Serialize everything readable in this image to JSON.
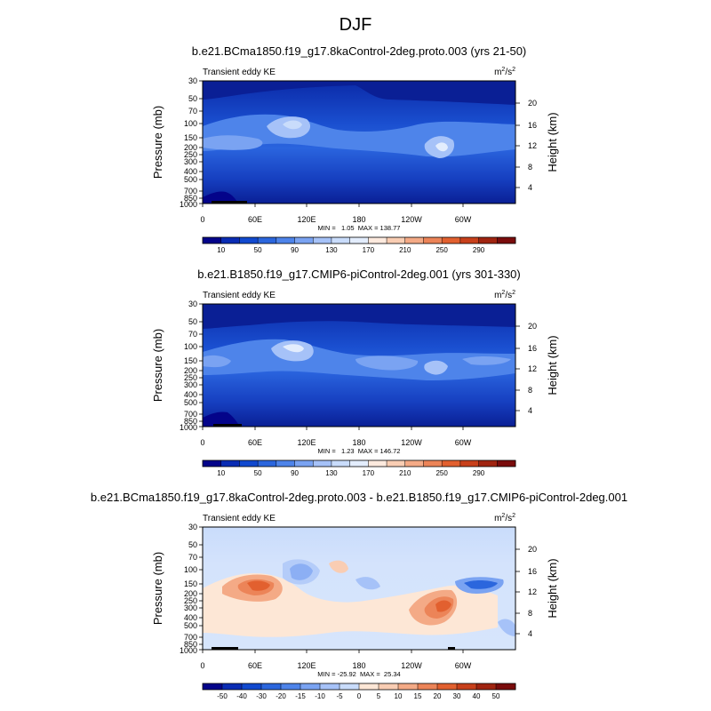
{
  "figure_title": "DJF",
  "chart_data": [
    {
      "type": "heatmap",
      "title": "b.e21.BCma1850.f19_g17.8kaControl-2deg.proto.003 (yrs 21-50)",
      "left_label": "Transient eddy KE",
      "units": "m²/s²",
      "units_base": "m",
      "units_sup1": "2",
      "units_mid": "/s",
      "units_sup2": "2",
      "ylabel": "Pressure (mb)",
      "ylabel_right": "Height (km)",
      "x_ticks": [
        "0",
        "60E",
        "120E",
        "180",
        "120W",
        "60W"
      ],
      "x_range": [
        0,
        360
      ],
      "y_ticks": [
        "30",
        "50",
        "70",
        "100",
        "150",
        "200",
        "250",
        "300",
        "400",
        "500",
        "700",
        "850",
        "1000"
      ],
      "y_range_mb": [
        1000,
        30
      ],
      "height_ticks": [
        "20",
        "16",
        "12",
        "8",
        "4"
      ],
      "stats": "MIN =   1.05  MAX = 138.77",
      "min": 1.05,
      "max": 138.77,
      "colorbar_labels": [
        "10",
        "50",
        "90",
        "130",
        "170",
        "210",
        "250",
        "290"
      ],
      "colorbar_colors": [
        "#04048a",
        "#0a2cb4",
        "#1149cf",
        "#2b66dd",
        "#4e84ea",
        "#7aa3f2",
        "#a6c2f8",
        "#c9dcfb",
        "#e3edfd",
        "#fdeade",
        "#f9cdb3",
        "#f4aa86",
        "#ec8458",
        "#e2602f",
        "#c8401b",
        "#a02410",
        "#7a0c0c"
      ]
    },
    {
      "type": "heatmap",
      "title": "b.e21.B1850.f19_g17.CMIP6-piControl-2deg.001 (yrs 301-330)",
      "left_label": "Transient eddy KE",
      "units": "m²/s²",
      "units_base": "m",
      "units_sup1": "2",
      "units_mid": "/s",
      "units_sup2": "2",
      "ylabel": "Pressure (mb)",
      "ylabel_right": "Height (km)",
      "x_ticks": [
        "0",
        "60E",
        "120E",
        "180",
        "120W",
        "60W"
      ],
      "x_range": [
        0,
        360
      ],
      "y_ticks": [
        "30",
        "50",
        "70",
        "100",
        "150",
        "200",
        "250",
        "300",
        "400",
        "500",
        "700",
        "850",
        "1000"
      ],
      "y_range_mb": [
        1000,
        30
      ],
      "height_ticks": [
        "20",
        "16",
        "12",
        "8",
        "4"
      ],
      "stats": "MIN =   1.23  MAX = 146.72",
      "min": 1.23,
      "max": 146.72,
      "colorbar_labels": [
        "10",
        "50",
        "90",
        "130",
        "170",
        "210",
        "250",
        "290"
      ],
      "colorbar_colors": [
        "#04048a",
        "#0a2cb4",
        "#1149cf",
        "#2b66dd",
        "#4e84ea",
        "#7aa3f2",
        "#a6c2f8",
        "#c9dcfb",
        "#e3edfd",
        "#fdeade",
        "#f9cdb3",
        "#f4aa86",
        "#ec8458",
        "#e2602f",
        "#c8401b",
        "#a02410",
        "#7a0c0c"
      ]
    },
    {
      "type": "heatmap",
      "title": "b.e21.BCma1850.f19_g17.8kaControl-2deg.proto.003 - b.e21.B1850.f19_g17.CMIP6-piControl-2deg.001",
      "left_label": "Transient eddy KE",
      "units": "m²/s²",
      "units_base": "m",
      "units_sup1": "2",
      "units_mid": "/s",
      "units_sup2": "2",
      "ylabel": "Pressure (mb)",
      "ylabel_right": "Height (km)",
      "x_ticks": [
        "0",
        "60E",
        "120E",
        "180",
        "120W",
        "60W"
      ],
      "x_range": [
        0,
        360
      ],
      "y_ticks": [
        "30",
        "50",
        "70",
        "100",
        "150",
        "200",
        "250",
        "300",
        "400",
        "500",
        "700",
        "850",
        "1000"
      ],
      "y_range_mb": [
        1000,
        30
      ],
      "height_ticks": [
        "20",
        "16",
        "12",
        "8",
        "4"
      ],
      "stats": "MIN = -25.92  MAX =  25.34",
      "min": -25.92,
      "max": 25.34,
      "colorbar_labels": [
        "-50",
        "-40",
        "-30",
        "-20",
        "-15",
        "-10",
        "-5",
        "0",
        "5",
        "10",
        "15",
        "20",
        "30",
        "40",
        "50"
      ],
      "colorbar_colors": [
        "#04048a",
        "#0a2cb4",
        "#1149cf",
        "#2b66dd",
        "#4e84ea",
        "#7aa3f2",
        "#a6c2f8",
        "#c9dcfb",
        "#fde7d6",
        "#f9cdb3",
        "#f4aa86",
        "#ec8458",
        "#e2602f",
        "#c8401b",
        "#a02410",
        "#7a0c0c"
      ]
    }
  ]
}
